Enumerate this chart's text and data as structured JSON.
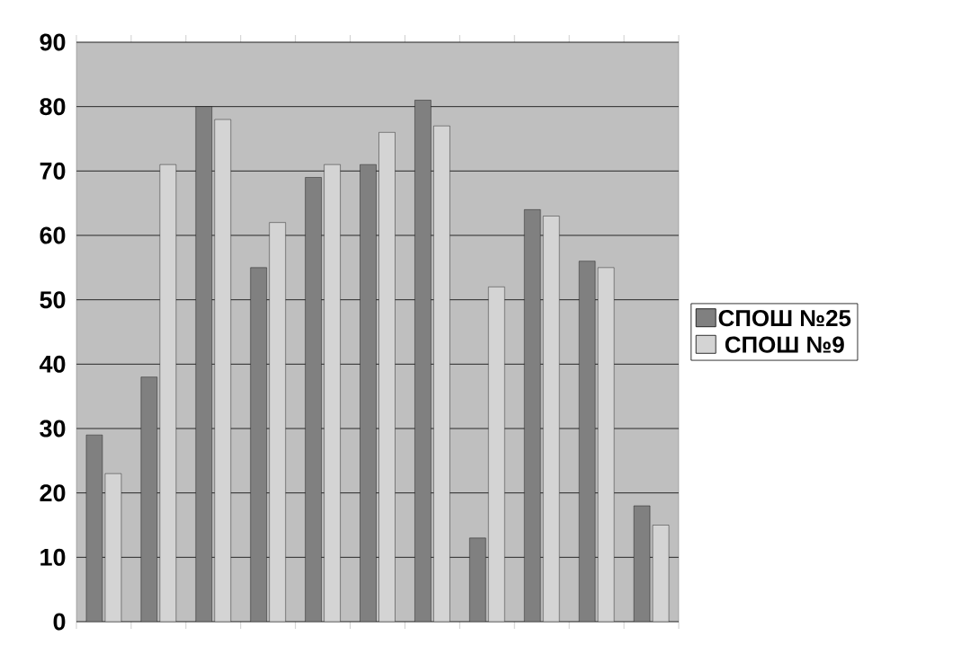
{
  "chart_data": {
    "type": "bar",
    "categories": [
      null,
      null,
      null,
      null,
      null,
      null,
      null,
      null,
      null,
      null,
      null
    ],
    "series": [
      {
        "name": "СПОШ №25",
        "color": "#808080",
        "values": [
          29,
          38,
          80,
          55,
          69,
          71,
          81,
          13,
          64,
          56,
          18
        ]
      },
      {
        "name": "СПОШ №9",
        "color": "#d4d4d4",
        "values": [
          23,
          71,
          78,
          62,
          71,
          76,
          77,
          52,
          63,
          55,
          15
        ]
      }
    ],
    "ylim": [
      0,
      90
    ],
    "yticks": [
      0,
      10,
      20,
      30,
      40,
      50,
      60,
      70,
      80,
      90
    ],
    "grid": "y",
    "legend": "right"
  }
}
